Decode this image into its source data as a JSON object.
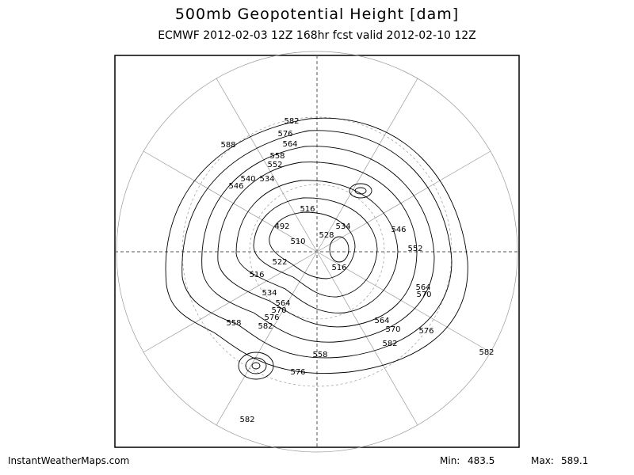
{
  "header": {
    "title": "500mb Geopotential Height [dam]",
    "subtitle": "ECMWF 2012-02-03 12Z 168hr fcst valid 2012-02-10 12Z"
  },
  "contour_labels": [
    582,
    576,
    564,
    588,
    558,
    552,
    540,
    534,
    546,
    516,
    492,
    534,
    528,
    510,
    546,
    552,
    522,
    516,
    516,
    534,
    564,
    570,
    576,
    558,
    582,
    564,
    570,
    576,
    582,
    558,
    576,
    582,
    582,
    564,
    570
  ],
  "footer": {
    "source": "InstantWeatherMaps.com",
    "min": {
      "label": "Min:",
      "value": 483.5
    },
    "max": {
      "label": "Max:",
      "value": 589.1
    }
  }
}
